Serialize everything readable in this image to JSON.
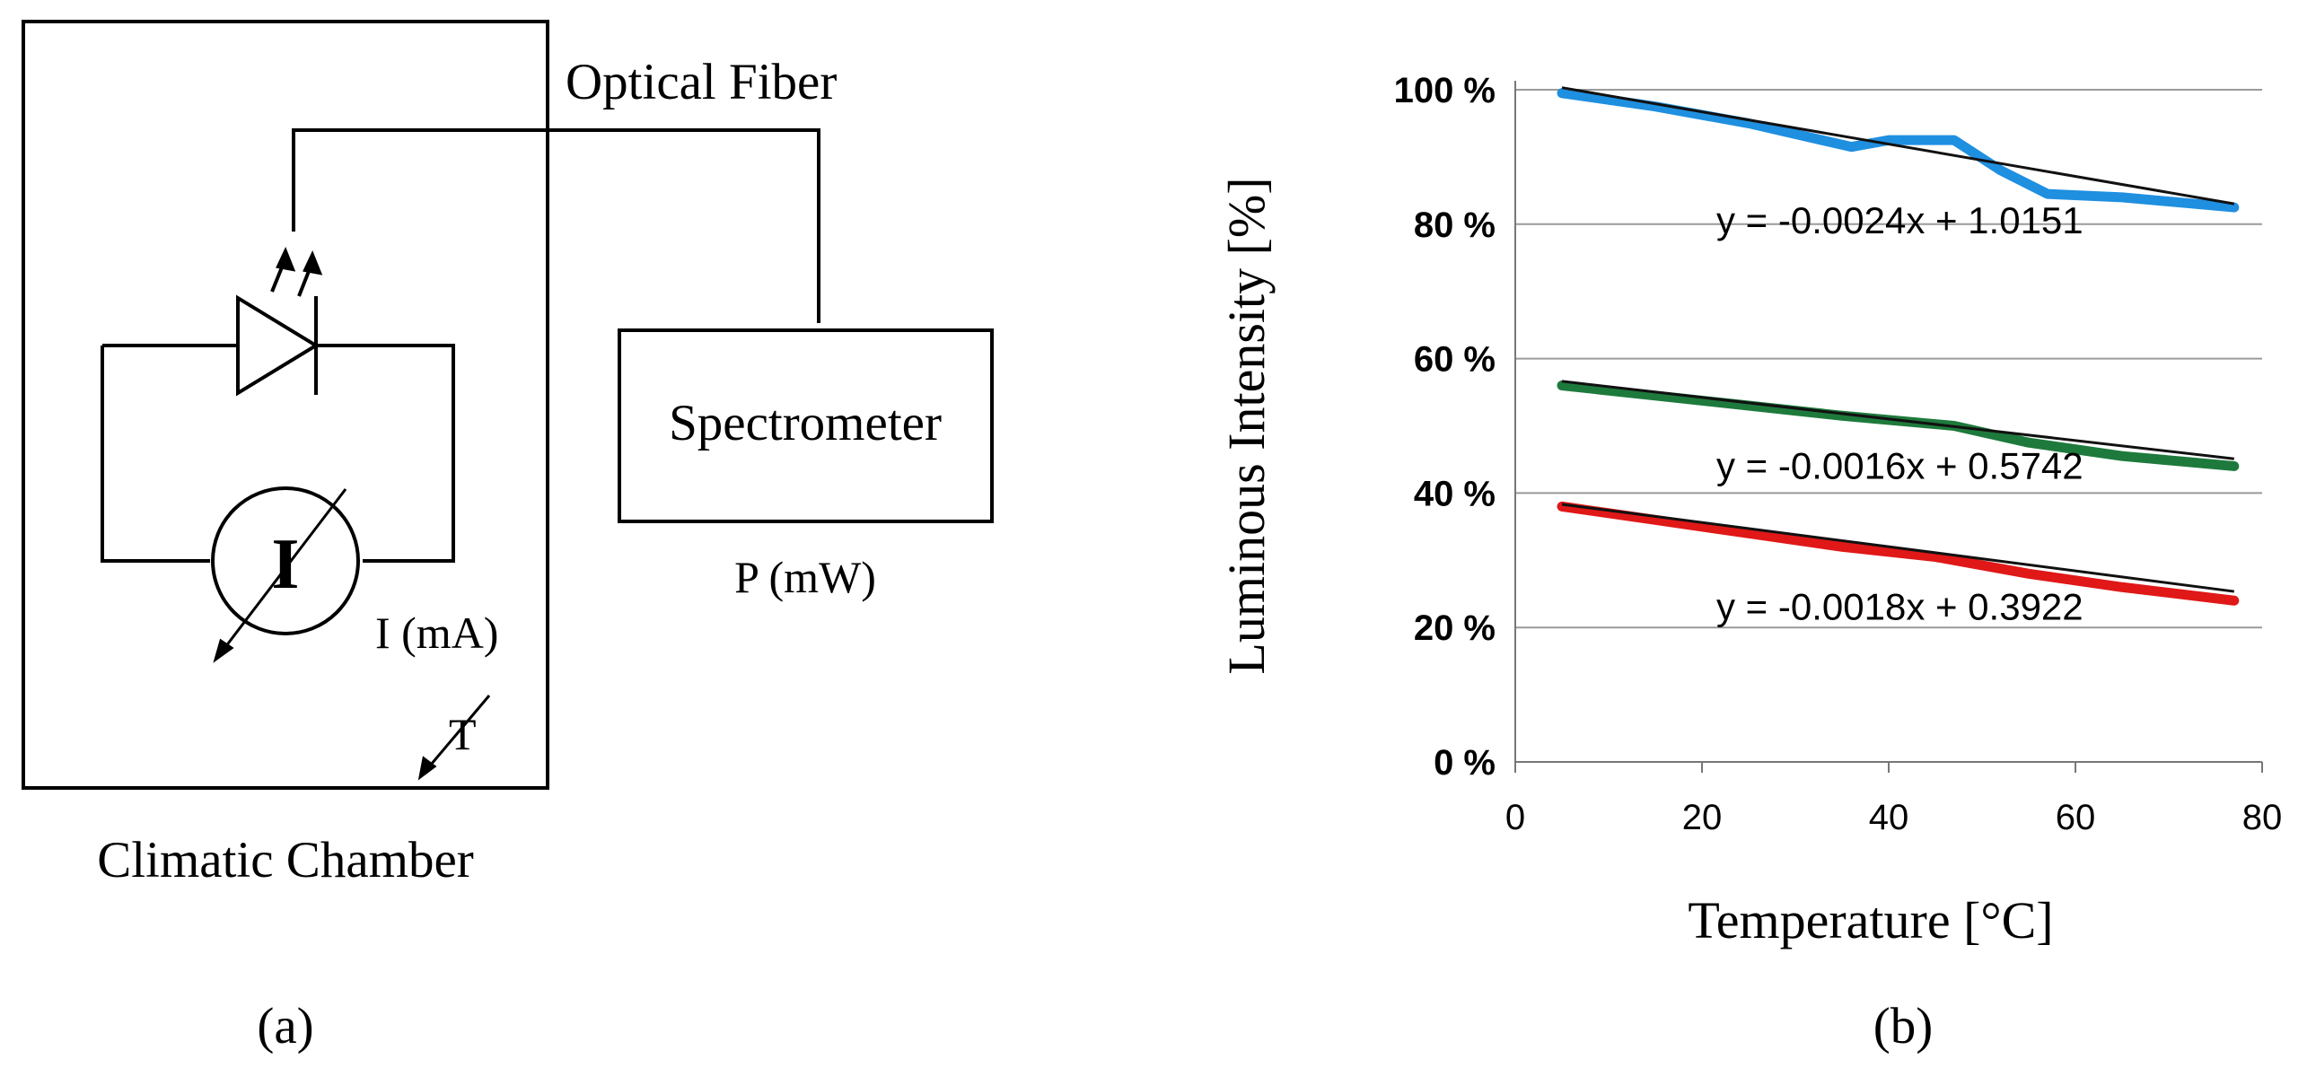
{
  "panel_a": {
    "chamber_label": "Climatic Chamber",
    "fiber_label": "Optical Fiber",
    "spectrometer_label": "Spectrometer",
    "power_label": "P (mW)",
    "ammeter_symbol": "I",
    "current_label": "I (mA)",
    "temperature_symbol": "T",
    "caption": "(a)"
  },
  "panel_b": {
    "caption": "(b)"
  },
  "colors": {
    "blue_series": "#1f8fe0",
    "green_series": "#1e7a3c",
    "red_series": "#e01818",
    "trendline": "#111111",
    "grid": "#9a9a9a"
  },
  "chart_data": {
    "type": "line",
    "xlabel": "Temperature [°C]",
    "ylabel": "Luminous Intensity [%]",
    "xlim": [
      0,
      80
    ],
    "ylim": [
      0,
      100
    ],
    "x_ticks": [
      0,
      20,
      40,
      60,
      80
    ],
    "x_tick_labels": [
      "0",
      "20",
      "40",
      "60",
      "80"
    ],
    "y_ticks": [
      0,
      20,
      40,
      60,
      80,
      100
    ],
    "y_tick_labels": [
      "0 %",
      "20 %",
      "40 %",
      "60 %",
      "80 %",
      "100 %"
    ],
    "grid": "horizontal",
    "series": [
      {
        "name": "blue",
        "color": "#1f8fe0",
        "x": [
          5,
          15,
          25,
          36,
          40,
          47,
          52,
          57,
          65,
          77
        ],
        "y": [
          99.5,
          97.5,
          95,
          91.5,
          92.5,
          92.5,
          88,
          84.5,
          84,
          82.5
        ],
        "trendline": {
          "slope": -0.24,
          "intercept": 101.51
        },
        "equation": "y = -0.0024x + 1.0151"
      },
      {
        "name": "green",
        "color": "#1e7a3c",
        "x": [
          5,
          15,
          25,
          35,
          47,
          55,
          65,
          77
        ],
        "y": [
          56,
          54.5,
          53,
          51.5,
          50,
          47.5,
          45.5,
          44
        ],
        "trendline": {
          "slope": -0.16,
          "intercept": 57.42
        },
        "equation": "y = -0.0016x + 0.5742"
      },
      {
        "name": "red",
        "color": "#e01818",
        "x": [
          5,
          15,
          25,
          35,
          45,
          55,
          65,
          77
        ],
        "y": [
          38,
          36,
          34,
          32,
          30.5,
          28,
          26,
          24
        ],
        "trendline": {
          "slope": -0.18,
          "intercept": 39.22
        },
        "equation": "y = -0.0018x + 0.3922"
      }
    ]
  }
}
